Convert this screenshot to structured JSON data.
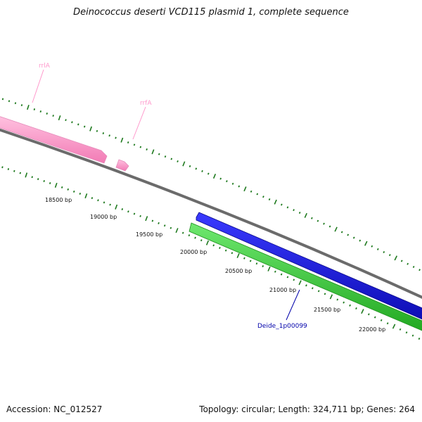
{
  "title": "Deinococcus deserti VCD115 plasmid 1, complete sequence",
  "footer": {
    "accession": "Accession: NC_012527",
    "summary": "Topology: circular; Length: 324,711 bp; Genes: 264"
  },
  "colors": {
    "backbone": "#808080",
    "ticks": "#1f7a1f",
    "rrna": "#ff99cc",
    "forward_cds": "#1a1adb",
    "reverse_cds": "#33cc33",
    "cds_label": "#0000aa"
  },
  "ruler": {
    "labels": [
      "18500 bp",
      "19000 bp",
      "19500 bp",
      "20000 bp",
      "20500 bp",
      "21000 bp",
      "21500 bp",
      "22000 bp"
    ]
  },
  "features": [
    {
      "label": "rrlA",
      "type": "rRNA",
      "color": "#ff99cc"
    },
    {
      "label": "rrfA",
      "type": "rRNA",
      "color": "#ff99cc"
    },
    {
      "label": "Deide_1p00099",
      "type": "CDS",
      "color": "#0000aa"
    }
  ]
}
